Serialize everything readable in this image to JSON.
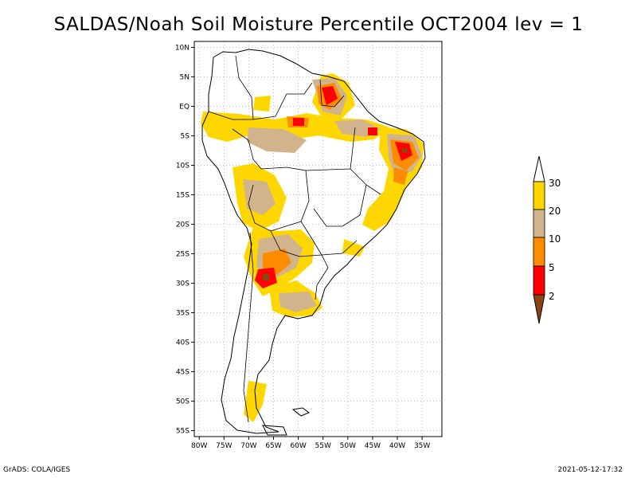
{
  "title": "SALDAS/Noah Soil Moisture Percentile OCT2004 lev = 1",
  "footer": {
    "left": "GrADS: COLA/IGES",
    "right": "2021-05-12-17:32"
  },
  "map": {
    "lon_range": [
      -81,
      -31
    ],
    "lat_range": [
      -56,
      11
    ],
    "lon_ticks": [
      {
        "value": -80,
        "label": "80W"
      },
      {
        "value": -75,
        "label": "75W"
      },
      {
        "value": -70,
        "label": "70W"
      },
      {
        "value": -65,
        "label": "65W"
      },
      {
        "value": -60,
        "label": "60W"
      },
      {
        "value": -55,
        "label": "55W"
      },
      {
        "value": -50,
        "label": "50W"
      },
      {
        "value": -45,
        "label": "45W"
      },
      {
        "value": -40,
        "label": "40W"
      },
      {
        "value": -35,
        "label": "35W"
      }
    ],
    "lat_ticks": [
      {
        "value": 10,
        "label": "10N"
      },
      {
        "value": 5,
        "label": "5N"
      },
      {
        "value": 0,
        "label": "EQ"
      },
      {
        "value": -5,
        "label": "5S"
      },
      {
        "value": -10,
        "label": "10S"
      },
      {
        "value": -15,
        "label": "15S"
      },
      {
        "value": -20,
        "label": "20S"
      },
      {
        "value": -25,
        "label": "25S"
      },
      {
        "value": -30,
        "label": "30S"
      },
      {
        "value": -35,
        "label": "35S"
      },
      {
        "value": -40,
        "label": "40S"
      },
      {
        "value": -45,
        "label": "45S"
      },
      {
        "value": -50,
        "label": "50S"
      },
      {
        "value": -55,
        "label": "55S"
      }
    ],
    "grid": true
  },
  "legend": {
    "levels": [
      "2",
      "5",
      "10",
      "20",
      "30"
    ],
    "colors": {
      "below_2": "#8b4513",
      "2_5": "#ff0000",
      "5_10": "#ff8c00",
      "10_20": "#d2b48c",
      "20_30": "#ffd700",
      "above_30": "#ffffff"
    }
  }
}
